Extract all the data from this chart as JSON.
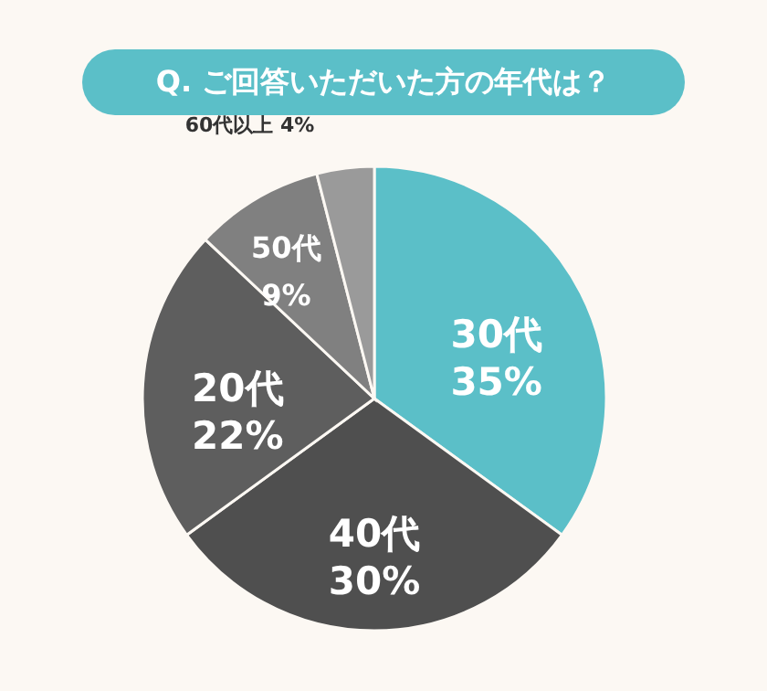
{
  "chart_data": {
    "type": "pie",
    "title": "Q. ご回答いただいた方の年代は？",
    "categories": [
      "30代",
      "40代",
      "20代",
      "50代",
      "60代以上"
    ],
    "values": [
      35,
      30,
      22,
      9,
      4
    ],
    "value_labels": [
      "35%",
      "30%",
      "22%",
      "9%",
      "4%"
    ],
    "colors": [
      "#5bbfc8",
      "#4f4f4f",
      "#5e5e5e",
      "#808080",
      "#9a9a9a"
    ]
  }
}
